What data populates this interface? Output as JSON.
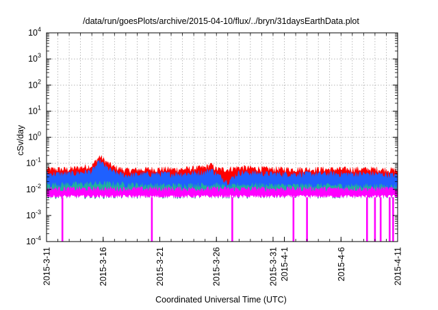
{
  "chart_data": {
    "type": "area",
    "title": "/data/run/goesPlots/archive/2015-04-10/flux/../bryn/31daysEarthData.plot",
    "xlabel": "Coordinated Universal Time (UTC)",
    "ylabel": "cSv/day",
    "y_scale": "log",
    "ylim": [
      0.0001,
      10000
    ],
    "xlim": [
      "2015-3-11",
      "2015-4-11"
    ],
    "grid": true,
    "y_ticks": [
      {
        "value": 0.0001,
        "mantissa": "10",
        "exp": "-4"
      },
      {
        "value": 0.001,
        "mantissa": "10",
        "exp": "-3"
      },
      {
        "value": 0.01,
        "mantissa": "10",
        "exp": "-2"
      },
      {
        "value": 0.1,
        "mantissa": "10",
        "exp": "-1"
      },
      {
        "value": 1,
        "mantissa": "10",
        "exp": "0"
      },
      {
        "value": 10,
        "mantissa": "10",
        "exp": "1"
      },
      {
        "value": 100,
        "mantissa": "10",
        "exp": "2"
      },
      {
        "value": 1000,
        "mantissa": "10",
        "exp": "3"
      },
      {
        "value": 10000,
        "mantissa": "10",
        "exp": "4"
      }
    ],
    "x_tick_labels": [
      "2015-3-11",
      "2015-3-16",
      "2015-3-21",
      "2015-3-26",
      "2015-3-31",
      "2015-4-1",
      "2015-4-6",
      "2015-4-11"
    ],
    "x_tick_days": [
      0,
      5,
      10,
      15,
      20,
      21,
      26,
      31
    ],
    "colors": {
      "series_red": "#ff0000",
      "series_blue": "#1f60ff",
      "series_teal": "#20b0a0",
      "series_magenta": "#ff00ff",
      "grid": "#9a9a9a"
    },
    "series": [
      {
        "name": "",
        "color": "#ff0000",
        "x": [
          "2015-3-11",
          "2015-3-13",
          "2015-3-14",
          "2015-3-15",
          "2015-3-15.7",
          "2015-3-16.3",
          "2015-3-17",
          "2015-3-18",
          "2015-3-20",
          "2015-3-23",
          "2015-3-25",
          "2015-3-25.5",
          "2015-3-26",
          "2015-3-27",
          "2015-3-28",
          "2015-3-31",
          "2015-4-3",
          "2015-4-6",
          "2015-4-9",
          "2015-4-11"
        ],
        "values": [
          0.06,
          0.06,
          0.07,
          0.08,
          0.19,
          0.11,
          0.07,
          0.055,
          0.06,
          0.06,
          0.07,
          0.09,
          0.06,
          0.06,
          0.07,
          0.06,
          0.06,
          0.06,
          0.06,
          0.055
        ]
      },
      {
        "name": "",
        "color": "#1f60ff",
        "x": [
          "2015-3-11",
          "2015-3-13",
          "2015-3-14",
          "2015-3-15",
          "2015-3-15.7",
          "2015-3-16.3",
          "2015-3-17",
          "2015-3-18",
          "2015-3-20",
          "2015-3-23",
          "2015-3-25",
          "2015-3-25.5",
          "2015-3-26",
          "2015-3-27",
          "2015-3-28",
          "2015-3-31",
          "2015-4-3",
          "2015-4-6",
          "2015-4-9",
          "2015-4-11"
        ],
        "values": [
          0.04,
          0.04,
          0.045,
          0.05,
          0.12,
          0.07,
          0.045,
          0.035,
          0.04,
          0.04,
          0.045,
          0.06,
          0.04,
          0.02,
          0.045,
          0.04,
          0.04,
          0.04,
          0.04,
          0.035
        ]
      },
      {
        "name": "",
        "color": "#20b0a0",
        "x": [
          "2015-3-11",
          "2015-3-16",
          "2015-3-21",
          "2015-3-26",
          "2015-3-27",
          "2015-3-28",
          "2015-4-1",
          "2015-4-6",
          "2015-4-11"
        ],
        "values": [
          0.015,
          0.017,
          0.014,
          0.015,
          0.012,
          0.015,
          0.014,
          0.014,
          0.013
        ]
      },
      {
        "name": "",
        "color": "#ff00ff",
        "x": [
          "2015-3-11",
          "2015-4-11"
        ],
        "values": [
          0.01,
          0.01
        ],
        "floor": 0.005,
        "dropouts": [
          "2015-3-12.4",
          "2015-3-20.3",
          "2015-3-27.4",
          "2015-4-1.8",
          "2015-4-3",
          "2015-4-8.3",
          "2015-4-9",
          "2015-4-9.5",
          "2015-4-10.3",
          "2015-4-10.6"
        ]
      }
    ]
  }
}
